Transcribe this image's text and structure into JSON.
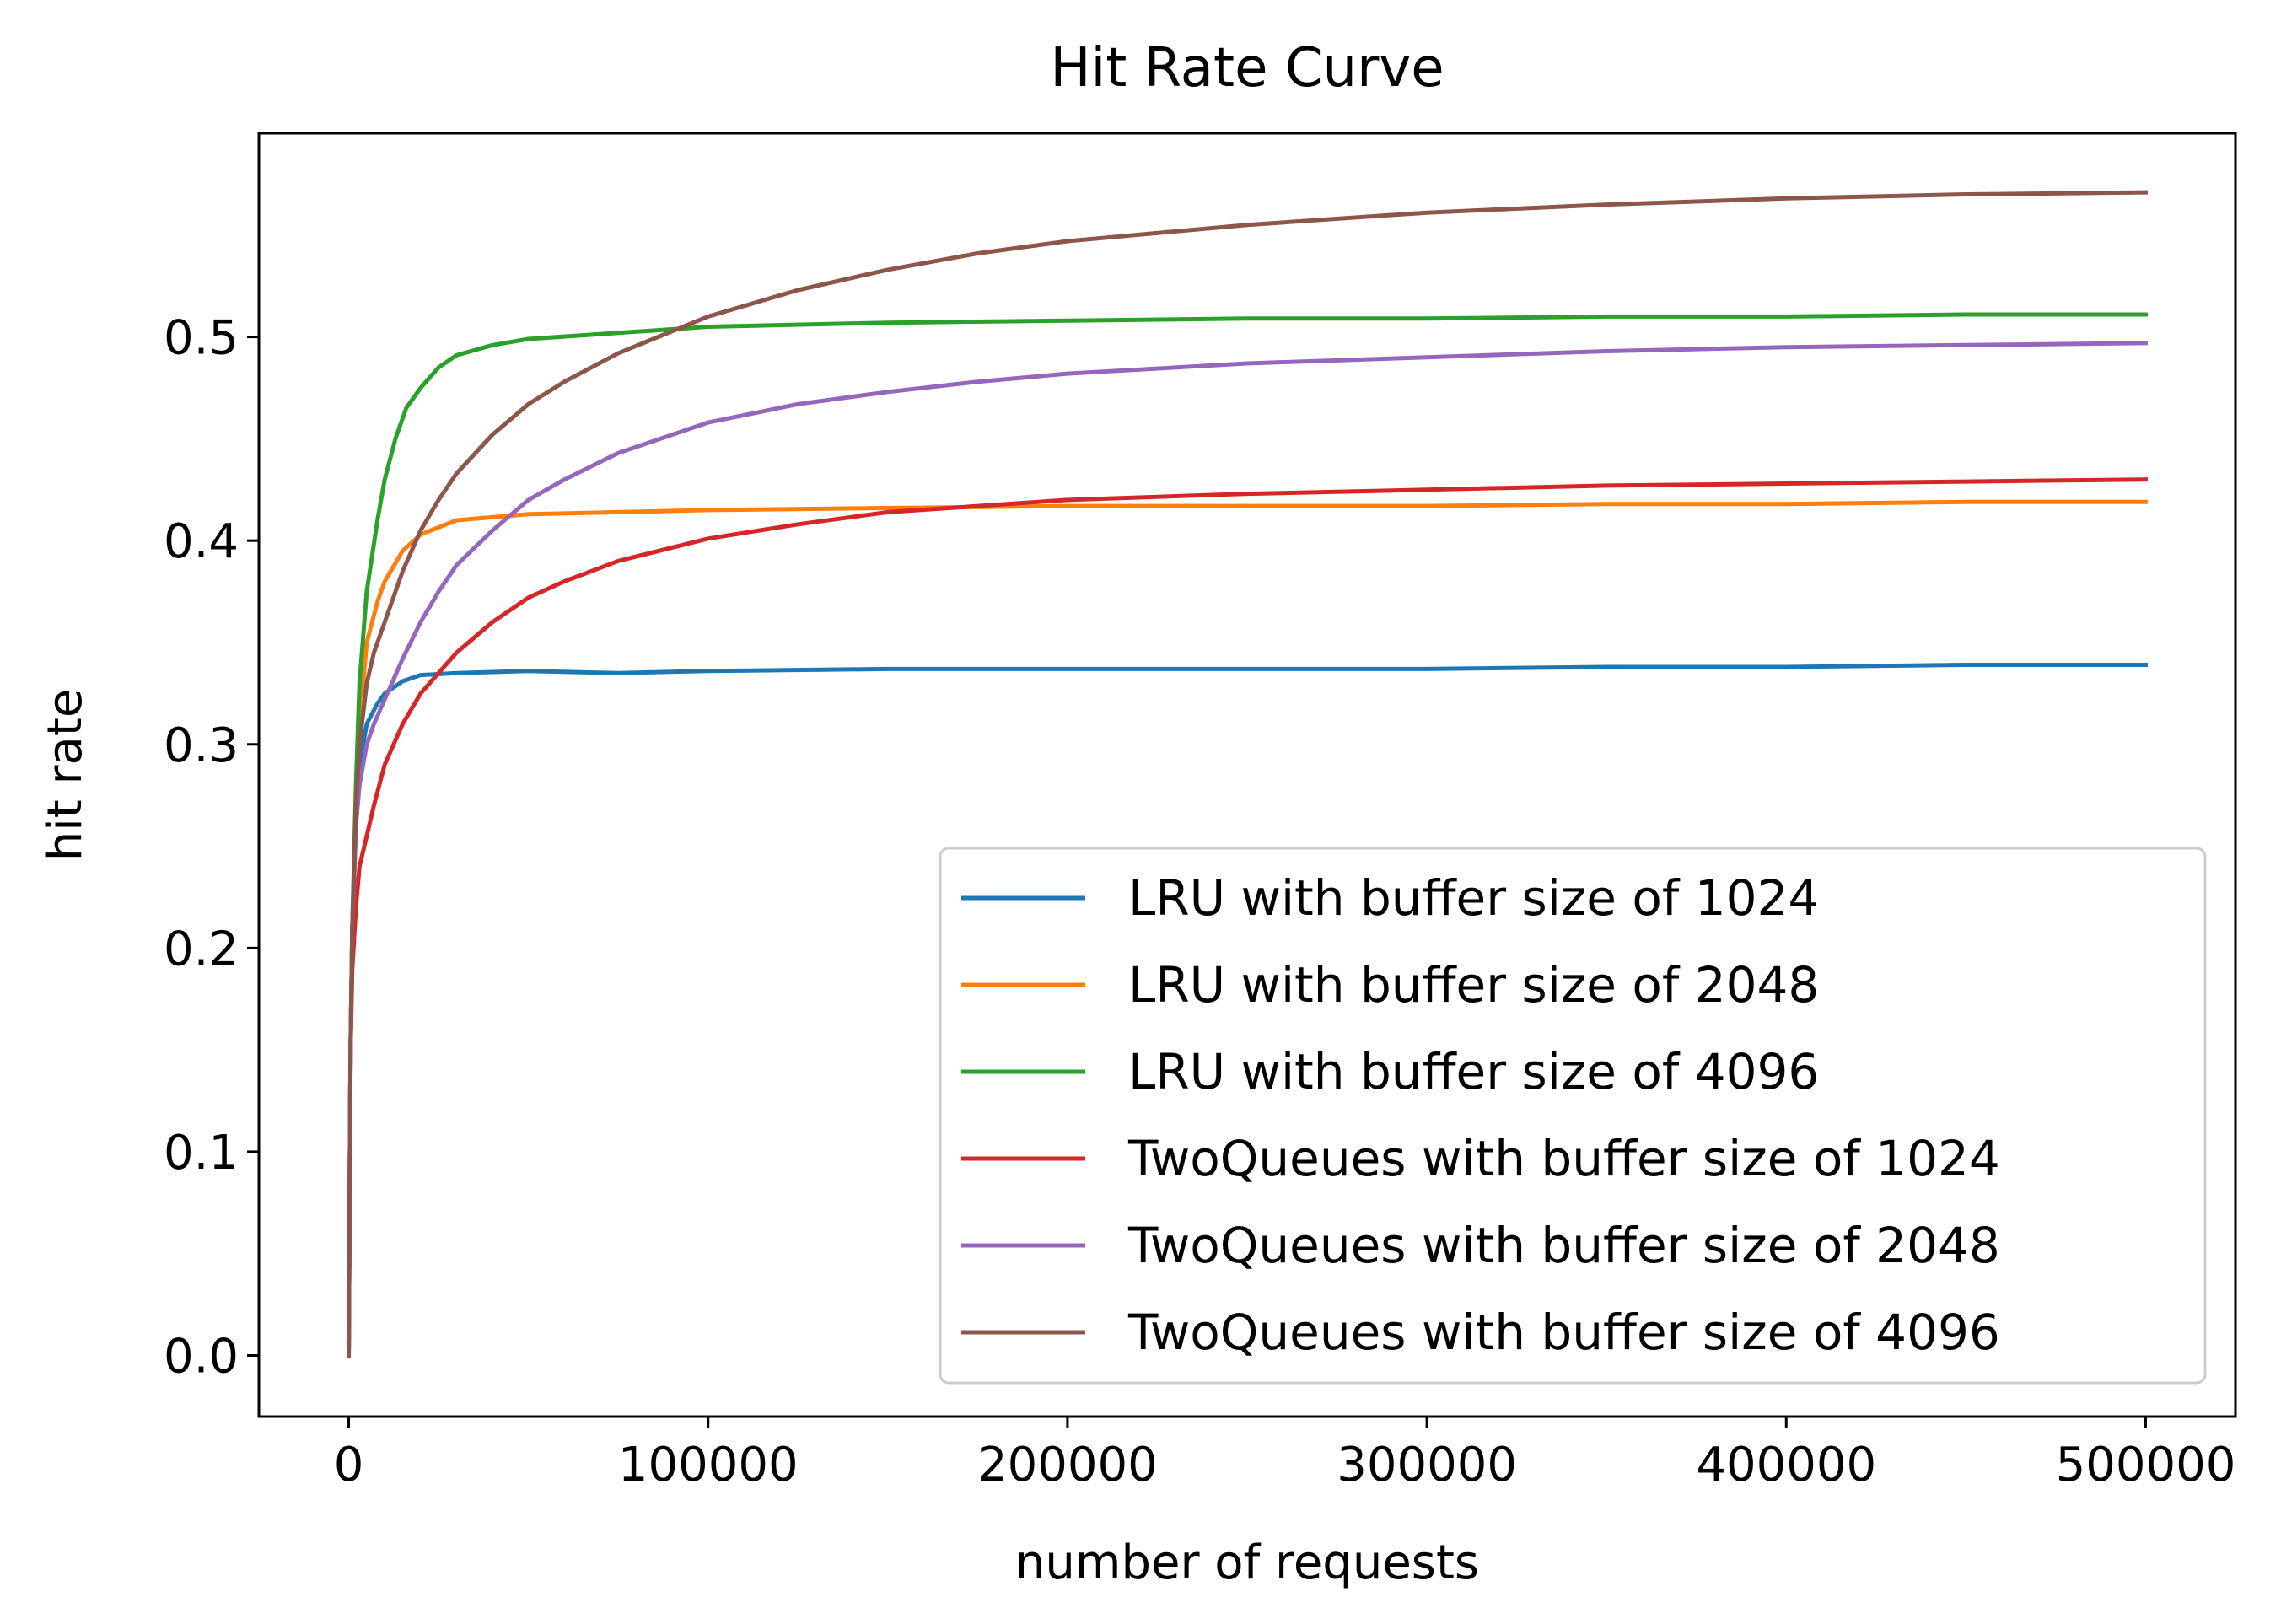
{
  "chart_data": {
    "type": "line",
    "title": "Hit Rate Curve",
    "xlabel": "number of requests",
    "ylabel": "hit rate",
    "xlim": [
      -25000,
      525000
    ],
    "ylim": [
      -0.03,
      0.6
    ],
    "xticks": [
      0,
      100000,
      200000,
      300000,
      400000,
      500000
    ],
    "xtick_labels": [
      "0",
      "100000",
      "200000",
      "300000",
      "400000",
      "500000"
    ],
    "yticks": [
      0.0,
      0.1,
      0.2,
      0.3,
      0.4,
      0.5
    ],
    "ytick_labels": [
      "0.0",
      "0.1",
      "0.2",
      "0.3",
      "0.4",
      "0.5"
    ],
    "grid": false,
    "legend_position": "lower-right",
    "series": [
      {
        "name": "LRU with buffer size of 1024",
        "color": "#1f77b4",
        "x": [
          0,
          500,
          1000,
          2000,
          3000,
          5000,
          8000,
          10000,
          15000,
          20000,
          30000,
          50000,
          75000,
          100000,
          150000,
          200000,
          250000,
          300000,
          350000,
          400000,
          450000,
          500000
        ],
        "y": [
          0.0,
          0.15,
          0.21,
          0.26,
          0.29,
          0.31,
          0.32,
          0.325,
          0.331,
          0.334,
          0.335,
          0.336,
          0.335,
          0.336,
          0.337,
          0.337,
          0.337,
          0.337,
          0.338,
          0.338,
          0.339,
          0.339
        ]
      },
      {
        "name": "LRU with buffer size of 2048",
        "color": "#ff7f0e",
        "x": [
          0,
          500,
          1000,
          2000,
          3000,
          5000,
          8000,
          10000,
          15000,
          20000,
          30000,
          50000,
          75000,
          100000,
          150000,
          200000,
          250000,
          300000,
          350000,
          400000,
          450000,
          500000
        ],
        "y": [
          0.0,
          0.15,
          0.21,
          0.27,
          0.31,
          0.35,
          0.37,
          0.38,
          0.395,
          0.403,
          0.41,
          0.413,
          0.414,
          0.415,
          0.416,
          0.417,
          0.417,
          0.417,
          0.418,
          0.418,
          0.419,
          0.419
        ]
      },
      {
        "name": "LRU with buffer size of 4096",
        "color": "#2ca02c",
        "x": [
          0,
          500,
          1000,
          2000,
          3000,
          5000,
          8000,
          10000,
          13000,
          16000,
          20000,
          25000,
          30000,
          40000,
          50000,
          75000,
          100000,
          150000,
          200000,
          250000,
          300000,
          350000,
          400000,
          450000,
          500000
        ],
        "y": [
          0.0,
          0.15,
          0.21,
          0.28,
          0.33,
          0.375,
          0.41,
          0.43,
          0.45,
          0.465,
          0.475,
          0.485,
          0.491,
          0.496,
          0.499,
          0.502,
          0.505,
          0.507,
          0.508,
          0.509,
          0.509,
          0.51,
          0.51,
          0.511,
          0.511
        ]
      },
      {
        "name": "TwoQueues with buffer size of 1024",
        "color": "#d62728",
        "x": [
          0,
          500,
          1000,
          2000,
          3000,
          5000,
          7000,
          10000,
          15000,
          20000,
          25000,
          30000,
          40000,
          50000,
          60000,
          75000,
          100000,
          125000,
          150000,
          200000,
          250000,
          300000,
          350000,
          400000,
          450000,
          500000
        ],
        "y": [
          0.0,
          0.15,
          0.19,
          0.22,
          0.24,
          0.255,
          0.27,
          0.29,
          0.31,
          0.325,
          0.335,
          0.345,
          0.36,
          0.372,
          0.38,
          0.39,
          0.401,
          0.408,
          0.414,
          0.42,
          0.423,
          0.425,
          0.427,
          0.428,
          0.429,
          0.43
        ]
      },
      {
        "name": "TwoQueues with buffer size of 2048",
        "color": "#9467bd",
        "x": [
          0,
          500,
          1000,
          2000,
          3000,
          5000,
          7000,
          10000,
          15000,
          20000,
          25000,
          30000,
          40000,
          50000,
          60000,
          75000,
          100000,
          125000,
          150000,
          175000,
          200000,
          250000,
          300000,
          350000,
          400000,
          450000,
          500000
        ],
        "y": [
          0.0,
          0.15,
          0.21,
          0.26,
          0.28,
          0.3,
          0.31,
          0.322,
          0.342,
          0.36,
          0.375,
          0.388,
          0.405,
          0.42,
          0.43,
          0.443,
          0.458,
          0.467,
          0.473,
          0.478,
          0.482,
          0.487,
          0.49,
          0.493,
          0.495,
          0.496,
          0.497
        ]
      },
      {
        "name": "TwoQueues with buffer size of 4096",
        "color": "#8c564b",
        "x": [
          0,
          500,
          1000,
          2000,
          3000,
          5000,
          7000,
          10000,
          15000,
          20000,
          25000,
          30000,
          40000,
          50000,
          60000,
          75000,
          100000,
          125000,
          150000,
          175000,
          200000,
          250000,
          300000,
          350000,
          400000,
          450000,
          500000
        ],
        "y": [
          0.0,
          0.15,
          0.21,
          0.27,
          0.3,
          0.33,
          0.345,
          0.36,
          0.385,
          0.405,
          0.42,
          0.433,
          0.452,
          0.467,
          0.478,
          0.492,
          0.51,
          0.523,
          0.533,
          0.541,
          0.547,
          0.555,
          0.561,
          0.565,
          0.568,
          0.57,
          0.571
        ]
      }
    ]
  }
}
